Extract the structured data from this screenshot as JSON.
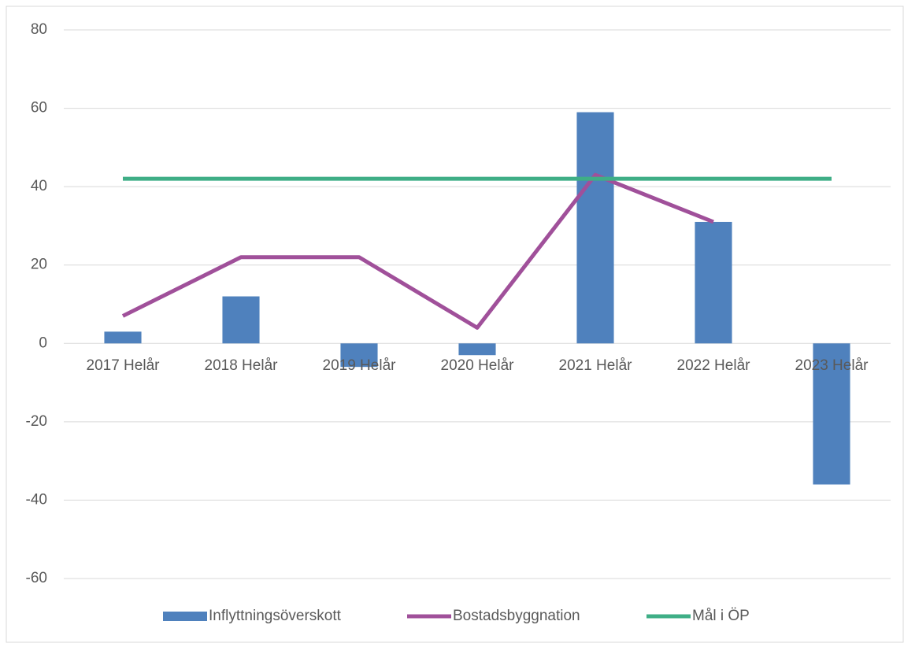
{
  "chart_data": {
    "type": "combo",
    "categories": [
      "2017 Helår",
      "2018 Helår",
      "2019 Helår",
      "2020 Helår",
      "2021 Helår",
      "2022 Helår",
      "2023 Helår"
    ],
    "series": [
      {
        "name": "Inflyttningsöverskott",
        "type": "bar",
        "color": "#4f81bd",
        "values": [
          3,
          12,
          -6,
          -3,
          59,
          31,
          -36
        ]
      },
      {
        "name": "Bostadsbyggnation",
        "type": "line",
        "color": "#a0509a",
        "values": [
          7,
          22,
          22,
          4,
          43,
          31,
          null
        ]
      },
      {
        "name": "Mål i ÖP",
        "type": "line",
        "color": "#3fae86",
        "values": [
          42,
          42,
          42,
          42,
          42,
          42,
          42
        ]
      }
    ],
    "ylim": [
      -60,
      80
    ],
    "yticks": [
      -60,
      -40,
      -20,
      0,
      20,
      40,
      60,
      80
    ],
    "grid": true,
    "legend": "bottom"
  }
}
